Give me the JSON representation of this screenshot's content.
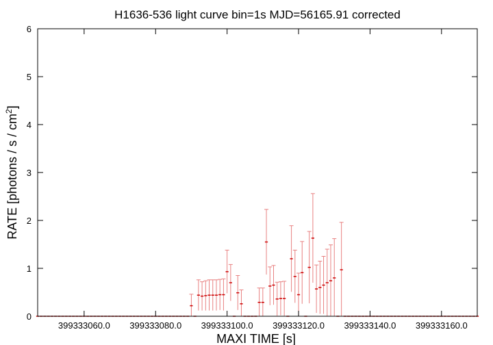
{
  "chart_data": {
    "type": "scatter",
    "title": "H1636-536 light curve bin=1s MJD=56165.91 corrected",
    "xlabel": "MAXI TIME [s]",
    "ylabel_main": "RATE [photons / s / cm",
    "ylabel_sup": "2",
    "ylabel_end": "]",
    "xlim": [
      399333047.0,
      399333170.0
    ],
    "ylim": [
      0,
      6
    ],
    "x_ticks": [
      399333060.0,
      399333080.0,
      399333100.0,
      399333120.0,
      399333140.0,
      399333160.0
    ],
    "x_tick_labels": [
      "399333060.0",
      "399333080.0",
      "399333100.0",
      "399333120.0",
      "399333140.0",
      "399333160.0"
    ],
    "y_ticks": [
      0,
      1,
      2,
      3,
      4,
      5,
      6
    ],
    "y_tick_labels": [
      "0",
      "1",
      "2",
      "3",
      "4",
      "5",
      "6"
    ],
    "grid": false,
    "colors": {
      "point": "#cc0000",
      "errorbar": "#e88080",
      "axes": "#000000"
    },
    "series": [
      {
        "x_start": 399333047.0,
        "x_step": 1.0,
        "y": [
          0,
          0,
          0,
          0,
          0,
          0,
          0,
          0,
          0,
          0,
          0,
          0,
          0,
          0,
          0,
          0,
          0,
          0,
          0,
          0,
          0,
          0,
          0,
          0,
          0,
          0,
          0,
          0,
          0,
          0,
          0,
          0,
          0,
          0,
          0,
          0,
          0,
          0,
          0,
          0,
          0,
          0,
          0,
          0.22,
          0,
          0.44,
          0.42,
          0.43,
          0.44,
          0.44,
          0.44,
          0.45,
          0.45,
          0.93,
          0.7,
          0,
          0.49,
          0.26,
          0,
          0,
          0,
          0,
          0.29,
          0.29,
          1.55,
          0.63,
          0.65,
          0.36,
          0.37,
          0.37,
          0,
          1.2,
          0.83,
          0.45,
          0.91,
          0,
          1.02,
          1.63,
          0.57,
          0.6,
          0.65,
          0.7,
          0.74,
          0.8,
          0,
          0.97,
          0,
          0,
          0,
          0,
          0,
          0,
          0,
          0,
          0,
          0,
          0,
          0,
          0,
          0,
          0,
          0,
          0,
          0,
          0,
          0,
          0,
          0,
          0,
          0,
          0,
          0,
          0,
          0,
          0,
          0,
          0,
          0,
          0,
          0,
          0,
          0,
          0,
          0
        ],
        "err": [
          0,
          0,
          0,
          0,
          0,
          0,
          0,
          0,
          0,
          0,
          0,
          0,
          0,
          0,
          0,
          0,
          0,
          0,
          0,
          0,
          0,
          0,
          0,
          0,
          0,
          0,
          0,
          0,
          0,
          0,
          0,
          0,
          0,
          0,
          0,
          0,
          0,
          0,
          0,
          0,
          0,
          0,
          0,
          0.24,
          0,
          0.32,
          0.3,
          0.31,
          0.32,
          0.32,
          0.32,
          0.32,
          0.33,
          0.45,
          0.38,
          0,
          0.36,
          0.29,
          0,
          0,
          0,
          0,
          0.3,
          0.3,
          0.68,
          0.4,
          0.41,
          0.35,
          0.35,
          0.36,
          0,
          0.69,
          0.55,
          0.45,
          0.65,
          0,
          0.75,
          0.93,
          0.5,
          0.55,
          0.6,
          0.7,
          0.75,
          0.82,
          0,
          0.99,
          0,
          0,
          0,
          0,
          0,
          0,
          0,
          0,
          0,
          0,
          0,
          0,
          0,
          0,
          0,
          0,
          0,
          0,
          0,
          0,
          0,
          0,
          0,
          0,
          0,
          0,
          0,
          0,
          0,
          0,
          0,
          0,
          0,
          0,
          0,
          0,
          0,
          0
        ]
      }
    ]
  }
}
